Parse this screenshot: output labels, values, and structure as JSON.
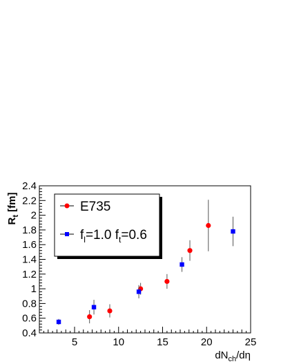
{
  "chart_data": {
    "type": "scatter",
    "title": "",
    "xlabel": {
      "main": "dN",
      "sub": "ch",
      "tail": "/dη"
    },
    "ylabel": {
      "main": "R",
      "sub": "t",
      "tail": " [fm]"
    },
    "xlim": [
      1,
      25
    ],
    "ylim": [
      0.4,
      2.4
    ],
    "x_ticks": [
      5,
      10,
      15,
      20,
      25
    ],
    "y_ticks": [
      0.4,
      0.6,
      0.8,
      1,
      1.2,
      1.4,
      1.6,
      1.8,
      2,
      2.2,
      2.4
    ],
    "y_tick_labels": [
      "0.4",
      "0.6",
      "0.8",
      "1",
      "1.2",
      "1.4",
      "1.6",
      "1.8",
      "2",
      "2.2",
      "2.4"
    ],
    "grid": false,
    "legend_position": "top-left",
    "series": [
      {
        "name": "E735",
        "marker": "circle",
        "color": "#ff0000",
        "points": [
          {
            "x": 6.7,
            "y": 0.62,
            "err": 0.09
          },
          {
            "x": 9.0,
            "y": 0.7,
            "err": 0.09
          },
          {
            "x": 12.5,
            "y": 1.0,
            "err": 0.08
          },
          {
            "x": 15.5,
            "y": 1.1,
            "err": 0.1
          },
          {
            "x": 18.1,
            "y": 1.52,
            "err": 0.14
          },
          {
            "x": 20.2,
            "y": 1.86,
            "err": 0.35
          }
        ]
      },
      {
        "name_parts": [
          {
            "t": "f",
            "sub": "l"
          },
          {
            "t": "=1.0 f",
            "sub": "t"
          },
          {
            "t": "=0.6",
            "sub": ""
          }
        ],
        "marker": "square",
        "color": "#0000ff",
        "points": [
          {
            "x": 3.2,
            "y": 0.55,
            "err": 0.04
          },
          {
            "x": 7.2,
            "y": 0.75,
            "err": 0.1
          },
          {
            "x": 12.3,
            "y": 0.96,
            "err": 0.09
          },
          {
            "x": 17.2,
            "y": 1.33,
            "err": 0.1
          },
          {
            "x": 23.0,
            "y": 1.78,
            "err": 0.2
          }
        ]
      }
    ]
  }
}
